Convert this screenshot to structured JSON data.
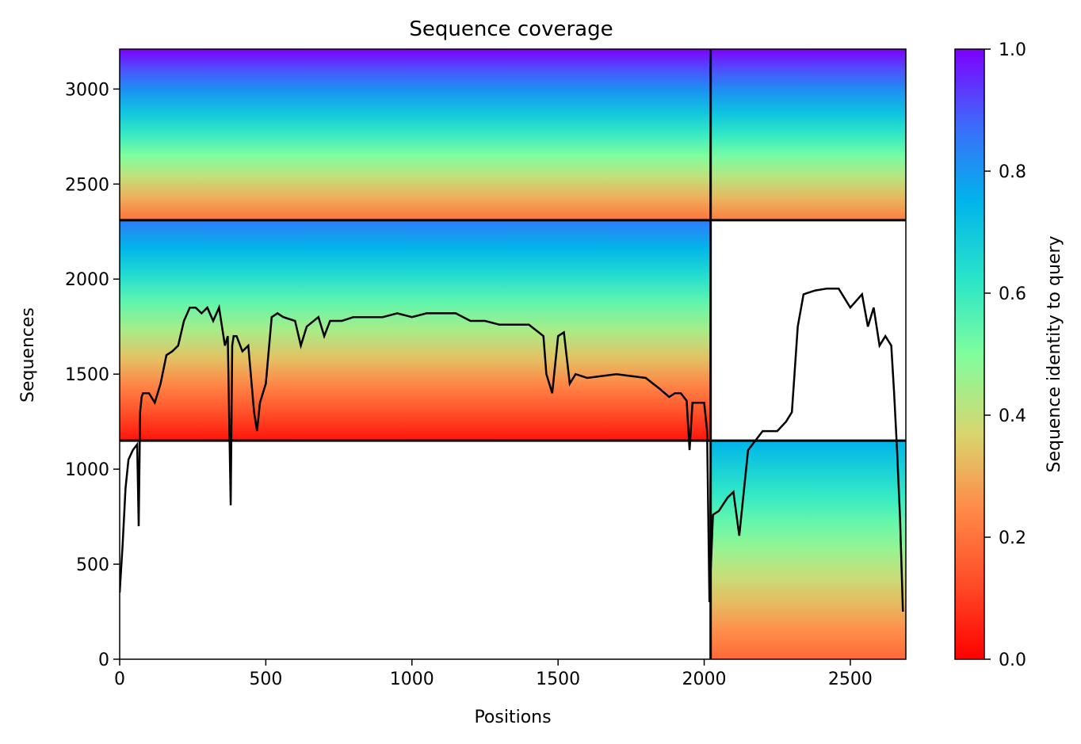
{
  "chart_data": {
    "type": "heatmap",
    "title": "Sequence coverage",
    "xlabel": "Positions",
    "ylabel": "Sequences",
    "xlim": [
      0,
      2690
    ],
    "ylim": [
      0,
      3210
    ],
    "xticks": [
      0,
      500,
      1000,
      1500,
      2000,
      2500
    ],
    "yticks": [
      0,
      500,
      1000,
      1500,
      2000,
      2500,
      3000
    ],
    "grid": false,
    "colormap": "rainbow_r",
    "colorbar": {
      "label": "Sequence identity to query",
      "range": [
        0,
        1
      ],
      "ticks": [
        "0.0",
        "0.2",
        "0.4",
        "0.6",
        "0.8",
        "1.0"
      ]
    },
    "divider_lines": {
      "vertical_x": [
        2022
      ],
      "horizontal_y": [
        2310,
        1150
      ]
    },
    "blocks": [
      {
        "x": [
          0,
          2022
        ],
        "y": [
          2310,
          3210
        ],
        "identity_top": 1.0,
        "identity_bottom": 0.2
      },
      {
        "x": [
          0,
          2022
        ],
        "y": [
          1150,
          2310
        ],
        "identity_top": 0.85,
        "identity_bottom": 0.03
      },
      {
        "x": [
          2022,
          2690
        ],
        "y": [
          2310,
          3210
        ],
        "identity_top": 1.0,
        "identity_bottom": 0.22
      },
      {
        "x": [
          2022,
          2690
        ],
        "y": [
          0,
          1150
        ],
        "identity_top": 0.75,
        "identity_bottom": 0.18
      }
    ],
    "coverage_line": {
      "color": "#000000",
      "x": [
        0,
        10,
        20,
        30,
        45,
        60,
        65,
        70,
        75,
        80,
        100,
        120,
        140,
        160,
        180,
        200,
        220,
        240,
        260,
        280,
        300,
        320,
        340,
        360,
        370,
        380,
        385,
        390,
        400,
        420,
        440,
        460,
        470,
        480,
        500,
        520,
        540,
        560,
        600,
        620,
        640,
        680,
        700,
        720,
        760,
        800,
        850,
        900,
        950,
        1000,
        1050,
        1100,
        1150,
        1200,
        1250,
        1300,
        1350,
        1400,
        1450,
        1460,
        1480,
        1500,
        1520,
        1540,
        1560,
        1600,
        1700,
        1800,
        1850,
        1880,
        1900,
        1920,
        1940,
        1950,
        1960,
        1980,
        2000,
        2010,
        2018,
        2030,
        2050,
        2080,
        2100,
        2120,
        2150,
        2200,
        2250,
        2280,
        2300,
        2320,
        2340,
        2380,
        2420,
        2460,
        2500,
        2540,
        2560,
        2580,
        2600,
        2620,
        2640,
        2650,
        2660,
        2670,
        2680
      ],
      "y": [
        350,
        600,
        900,
        1050,
        1100,
        1130,
        700,
        1300,
        1380,
        1400,
        1400,
        1350,
        1450,
        1600,
        1620,
        1650,
        1780,
        1850,
        1850,
        1820,
        1850,
        1780,
        1850,
        1650,
        1700,
        810,
        1650,
        1700,
        1700,
        1620,
        1650,
        1300,
        1200,
        1350,
        1450,
        1800,
        1820,
        1800,
        1780,
        1650,
        1750,
        1800,
        1700,
        1780,
        1780,
        1800,
        1800,
        1800,
        1820,
        1800,
        1820,
        1820,
        1820,
        1780,
        1780,
        1760,
        1760,
        1760,
        1700,
        1500,
        1400,
        1700,
        1720,
        1450,
        1500,
        1480,
        1500,
        1480,
        1420,
        1380,
        1400,
        1400,
        1360,
        1100,
        1350,
        1350,
        1350,
        1200,
        300,
        760,
        780,
        850,
        880,
        650,
        1100,
        1200,
        1200,
        1250,
        1300,
        1750,
        1920,
        1940,
        1950,
        1950,
        1850,
        1920,
        1750,
        1850,
        1650,
        1700,
        1650,
        1400,
        1100,
        750,
        250
      ]
    }
  }
}
